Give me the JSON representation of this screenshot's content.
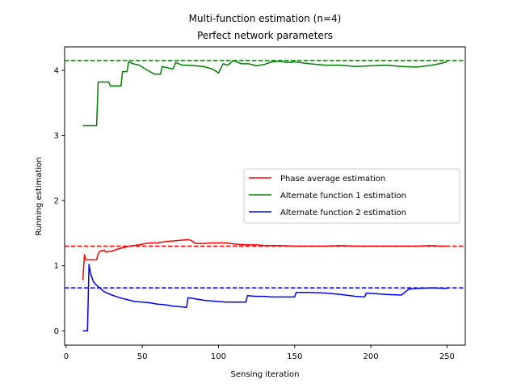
{
  "chart_data": {
    "type": "line",
    "title": "Multi-function estimation (n=4)",
    "subtitle": "Perfect network parameters",
    "xlabel": "Sensing iteration",
    "ylabel": "Running estimation",
    "xlim": [
      -1,
      262
    ],
    "ylim": [
      -0.22,
      4.36
    ],
    "xticks": [
      0,
      50,
      100,
      150,
      200,
      250
    ],
    "yticks": [
      0,
      1,
      2,
      3,
      4
    ],
    "legend_position": "center-right",
    "series": [
      {
        "name": "Phase average estimation",
        "color": "#ff0000",
        "target": 1.3,
        "x": [
          11,
          12,
          13,
          14,
          20,
          21,
          22,
          25,
          26,
          27,
          28,
          30,
          33,
          36,
          40,
          44,
          48,
          52,
          56,
          60,
          65,
          70,
          75,
          80,
          82,
          85,
          90,
          95,
          100,
          105,
          108,
          112,
          118,
          125,
          130,
          135,
          140,
          150,
          160,
          170,
          180,
          190,
          200,
          210,
          220,
          230,
          240,
          245,
          250
        ],
        "y": [
          0.78,
          1.17,
          1.09,
          1.09,
          1.09,
          1.18,
          1.22,
          1.24,
          1.21,
          1.21,
          1.22,
          1.22,
          1.25,
          1.27,
          1.29,
          1.31,
          1.32,
          1.34,
          1.35,
          1.35,
          1.37,
          1.38,
          1.39,
          1.4,
          1.39,
          1.34,
          1.34,
          1.35,
          1.35,
          1.35,
          1.34,
          1.33,
          1.32,
          1.32,
          1.31,
          1.31,
          1.31,
          1.3,
          1.3,
          1.3,
          1.31,
          1.3,
          1.3,
          1.3,
          1.3,
          1.3,
          1.31,
          1.3,
          1.3
        ]
      },
      {
        "name": "Alternate function 1 estimation",
        "color": "#008000",
        "target": 4.15,
        "x": [
          11,
          20,
          21,
          28,
          29,
          36,
          37,
          40,
          41,
          44,
          48,
          52,
          55,
          58,
          62,
          63,
          70,
          72,
          76,
          80,
          90,
          96,
          100,
          103,
          106,
          110,
          115,
          120,
          125,
          130,
          135,
          140,
          145,
          150,
          160,
          170,
          180,
          190,
          200,
          210,
          220,
          230,
          240,
          245,
          250
        ],
        "y": [
          3.15,
          3.15,
          3.82,
          3.82,
          3.76,
          3.76,
          3.98,
          3.98,
          4.13,
          4.1,
          4.08,
          4.02,
          3.98,
          3.94,
          3.94,
          4.06,
          4.02,
          4.12,
          4.08,
          4.08,
          4.06,
          4.02,
          3.96,
          4.1,
          4.08,
          4.15,
          4.1,
          4.1,
          4.07,
          4.09,
          4.13,
          4.14,
          4.12,
          4.13,
          4.1,
          4.08,
          4.08,
          4.06,
          4.07,
          4.08,
          4.06,
          4.05,
          4.08,
          4.1,
          4.13
        ]
      },
      {
        "name": "Alternate function 2 estimation",
        "color": "#0000ff",
        "target": 0.66,
        "x": [
          11,
          14,
          15,
          16,
          18,
          20,
          22,
          25,
          30,
          35,
          40,
          45,
          50,
          55,
          60,
          65,
          70,
          75,
          79,
          80,
          85,
          90,
          95,
          100,
          105,
          108,
          118,
          119,
          125,
          130,
          135,
          150,
          151,
          160,
          170,
          180,
          190,
          196,
          197,
          210,
          220,
          225,
          230,
          240,
          250
        ],
        "y": [
          0.0,
          0.0,
          1.02,
          0.88,
          0.75,
          0.7,
          0.66,
          0.6,
          0.55,
          0.51,
          0.48,
          0.45,
          0.44,
          0.43,
          0.41,
          0.4,
          0.38,
          0.37,
          0.36,
          0.51,
          0.49,
          0.47,
          0.46,
          0.45,
          0.44,
          0.44,
          0.44,
          0.54,
          0.53,
          0.53,
          0.52,
          0.52,
          0.59,
          0.59,
          0.58,
          0.56,
          0.53,
          0.52,
          0.58,
          0.56,
          0.55,
          0.64,
          0.65,
          0.66,
          0.65
        ]
      }
    ]
  }
}
